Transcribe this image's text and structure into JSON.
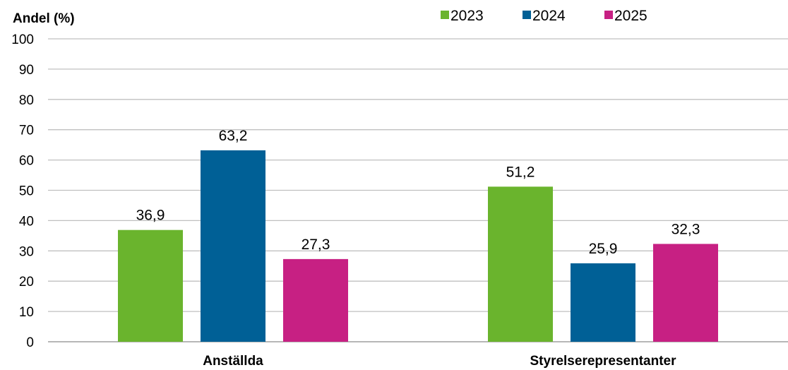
{
  "chart_data": {
    "type": "bar",
    "ylabel": "Andel (%)",
    "xlabel": "",
    "ylim": [
      0,
      100
    ],
    "yticks": [
      0,
      10,
      20,
      30,
      40,
      50,
      60,
      70,
      80,
      90,
      100
    ],
    "grid": true,
    "legend_position": "top-right",
    "categories": [
      "Anställda",
      "Styrelserepresentanter"
    ],
    "series": [
      {
        "name": "2023",
        "color": "#6ab42d",
        "values": [
          36.9,
          51.2
        ],
        "labels": [
          "36,9",
          "51,2"
        ]
      },
      {
        "name": "2024",
        "color": "#006096",
        "values": [
          63.2,
          25.9
        ],
        "labels": [
          "63,2",
          "25,9"
        ]
      },
      {
        "name": "2025",
        "color": "#c72083",
        "values": [
          27.3,
          32.3
        ],
        "labels": [
          "27,3",
          "32,3"
        ]
      }
    ]
  }
}
